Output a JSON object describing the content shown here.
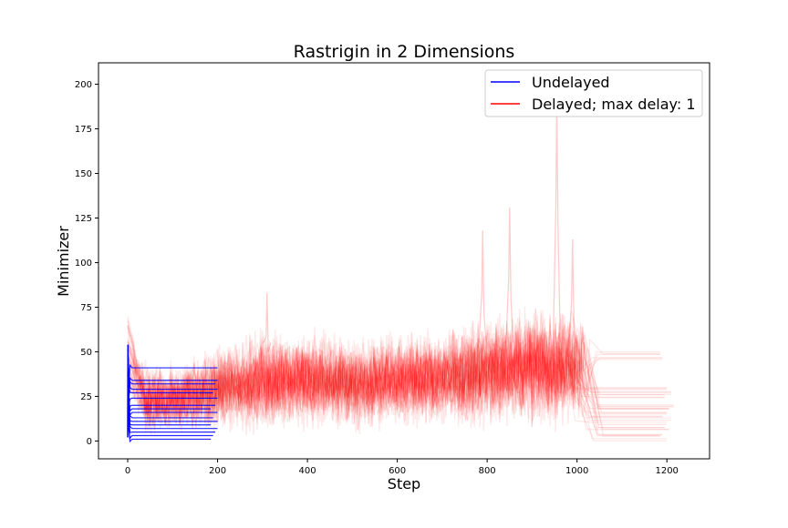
{
  "chart_data": {
    "type": "line",
    "title": "Rastrigin in 2 Dimensions",
    "xlabel": "Step",
    "ylabel": "Minimizer",
    "xlim": [
      -65,
      1295
    ],
    "ylim": [
      -10,
      212
    ],
    "xticks": [
      0,
      200,
      400,
      600,
      800,
      1000,
      1200
    ],
    "yticks": [
      0,
      25,
      50,
      75,
      100,
      125,
      150,
      175,
      200
    ],
    "grid": false,
    "legend": {
      "placement": "top-right",
      "entries": [
        {
          "label": "Undelayed",
          "color": "#0000ff"
        },
        {
          "label": "Delayed; max delay: 1",
          "color": "#ff0000"
        }
      ]
    },
    "series": [
      {
        "name": "Undelayed",
        "color": "#0000ff",
        "note_runs": "many overlapping runs converging quickly",
        "plateaus": [
          41,
          34,
          32,
          29,
          27,
          24,
          20,
          18,
          16,
          13,
          11,
          9,
          7,
          5,
          3,
          1
        ],
        "end_steps": [
          200,
          200,
          195,
          200,
          190,
          200,
          195,
          185,
          200,
          190,
          200,
          185,
          200,
          195,
          190,
          185
        ],
        "initial_peak": 54
      },
      {
        "name": "Delayed; max delay: 1",
        "color": "#ff0000",
        "note_runs": "many translucent noisy runs ending near step 1000-1210",
        "band_x": [
          0,
          100,
          200,
          300,
          400,
          500,
          600,
          700,
          800,
          900,
          1000
        ],
        "band_low": [
          2,
          4,
          6,
          6,
          7,
          7,
          8,
          8,
          8,
          9,
          10
        ],
        "band_high": [
          45,
          42,
          52,
          62,
          60,
          58,
          60,
          62,
          70,
          75,
          72
        ],
        "spikes": [
          {
            "x": 310,
            "y": 83
          },
          {
            "x": 790,
            "y": 118
          },
          {
            "x": 850,
            "y": 131
          },
          {
            "x": 955,
            "y": 190
          },
          {
            "x": 990,
            "y": 113
          }
        ],
        "plateaus": [
          49,
          46,
          29,
          27,
          25,
          20,
          18,
          16,
          14,
          12,
          10,
          8,
          6,
          4,
          2,
          1
        ],
        "end_steps": [
          1185,
          1190,
          1200,
          1210,
          1195,
          1215,
          1205,
          1200,
          1190,
          1210,
          1200,
          1195,
          1205,
          1190,
          1185,
          1200
        ]
      }
    ]
  }
}
